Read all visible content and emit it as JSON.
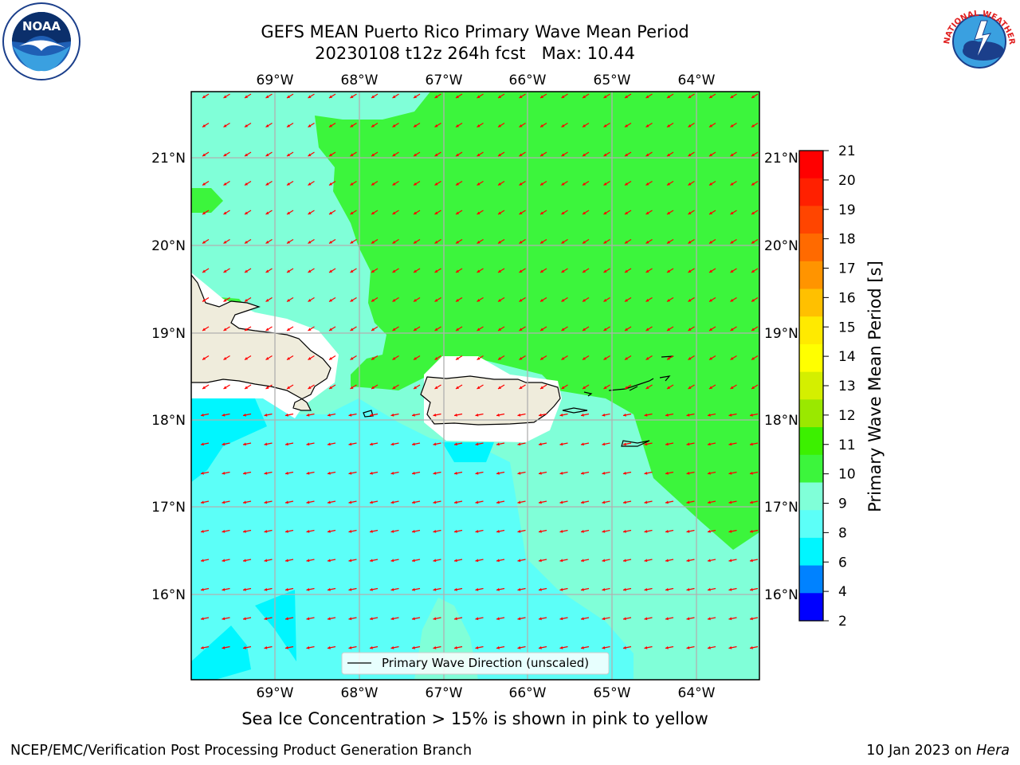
{
  "title": {
    "line1": "GEFS MEAN Puerto Rico Primary Wave Mean Period",
    "line2": "20230108 t12z 264h fcst   Max: 10.44"
  },
  "caption": "Sea Ice Concentration > 15% is shown in pink to yellow",
  "footer": {
    "left": "NCEP/EMC/Verification Post Processing Product Generation Branch",
    "right_prefix": "10 Jan 2023 on ",
    "right_host": "Hera"
  },
  "logos": {
    "left": {
      "text": "NOAA",
      "ring_text": "NATIONAL OCEANIC AND ATMOSPHERIC ADMINISTRATION · U.S. DEPARTMENT OF COMMERCE"
    },
    "right": {
      "text": "NATIONAL WEATHER SERVICE"
    }
  },
  "legend": {
    "label": "Primary Wave Direction (unscaled)"
  },
  "colorbar": {
    "label": "Primary Wave Mean Period [s]",
    "ticks": [
      "21",
      "20",
      "19",
      "18",
      "17",
      "16",
      "15",
      "14",
      "13",
      "12",
      "11",
      "10",
      "9",
      "8",
      "6",
      "4",
      "2"
    ],
    "colors": [
      "#ff0000",
      "#ff2000",
      "#ff4500",
      "#ff6a00",
      "#ff9400",
      "#ffc000",
      "#ffea00",
      "#ffff00",
      "#d4ef00",
      "#9ae800",
      "#3cf000",
      "#3cf53c",
      "#80ffd8",
      "#5cfff8",
      "#00f6ff",
      "#0082ff",
      "#0000ff"
    ]
  },
  "axes": {
    "lon_ticks": [
      "69°W",
      "68°W",
      "67°W",
      "66°W",
      "65°W",
      "64°W"
    ],
    "lat_ticks": [
      "21°N",
      "20°N",
      "19°N",
      "18°N",
      "17°N",
      "16°N"
    ]
  },
  "colors": {
    "land": "#efecdc",
    "period_10_11": "#3cf53c",
    "period_9_10": "#80ffd8",
    "period_8_9": "#5cfff8",
    "period_6_8": "#00f6ff",
    "arrow": "#ff0000",
    "grid": "#b0b0b0"
  }
}
